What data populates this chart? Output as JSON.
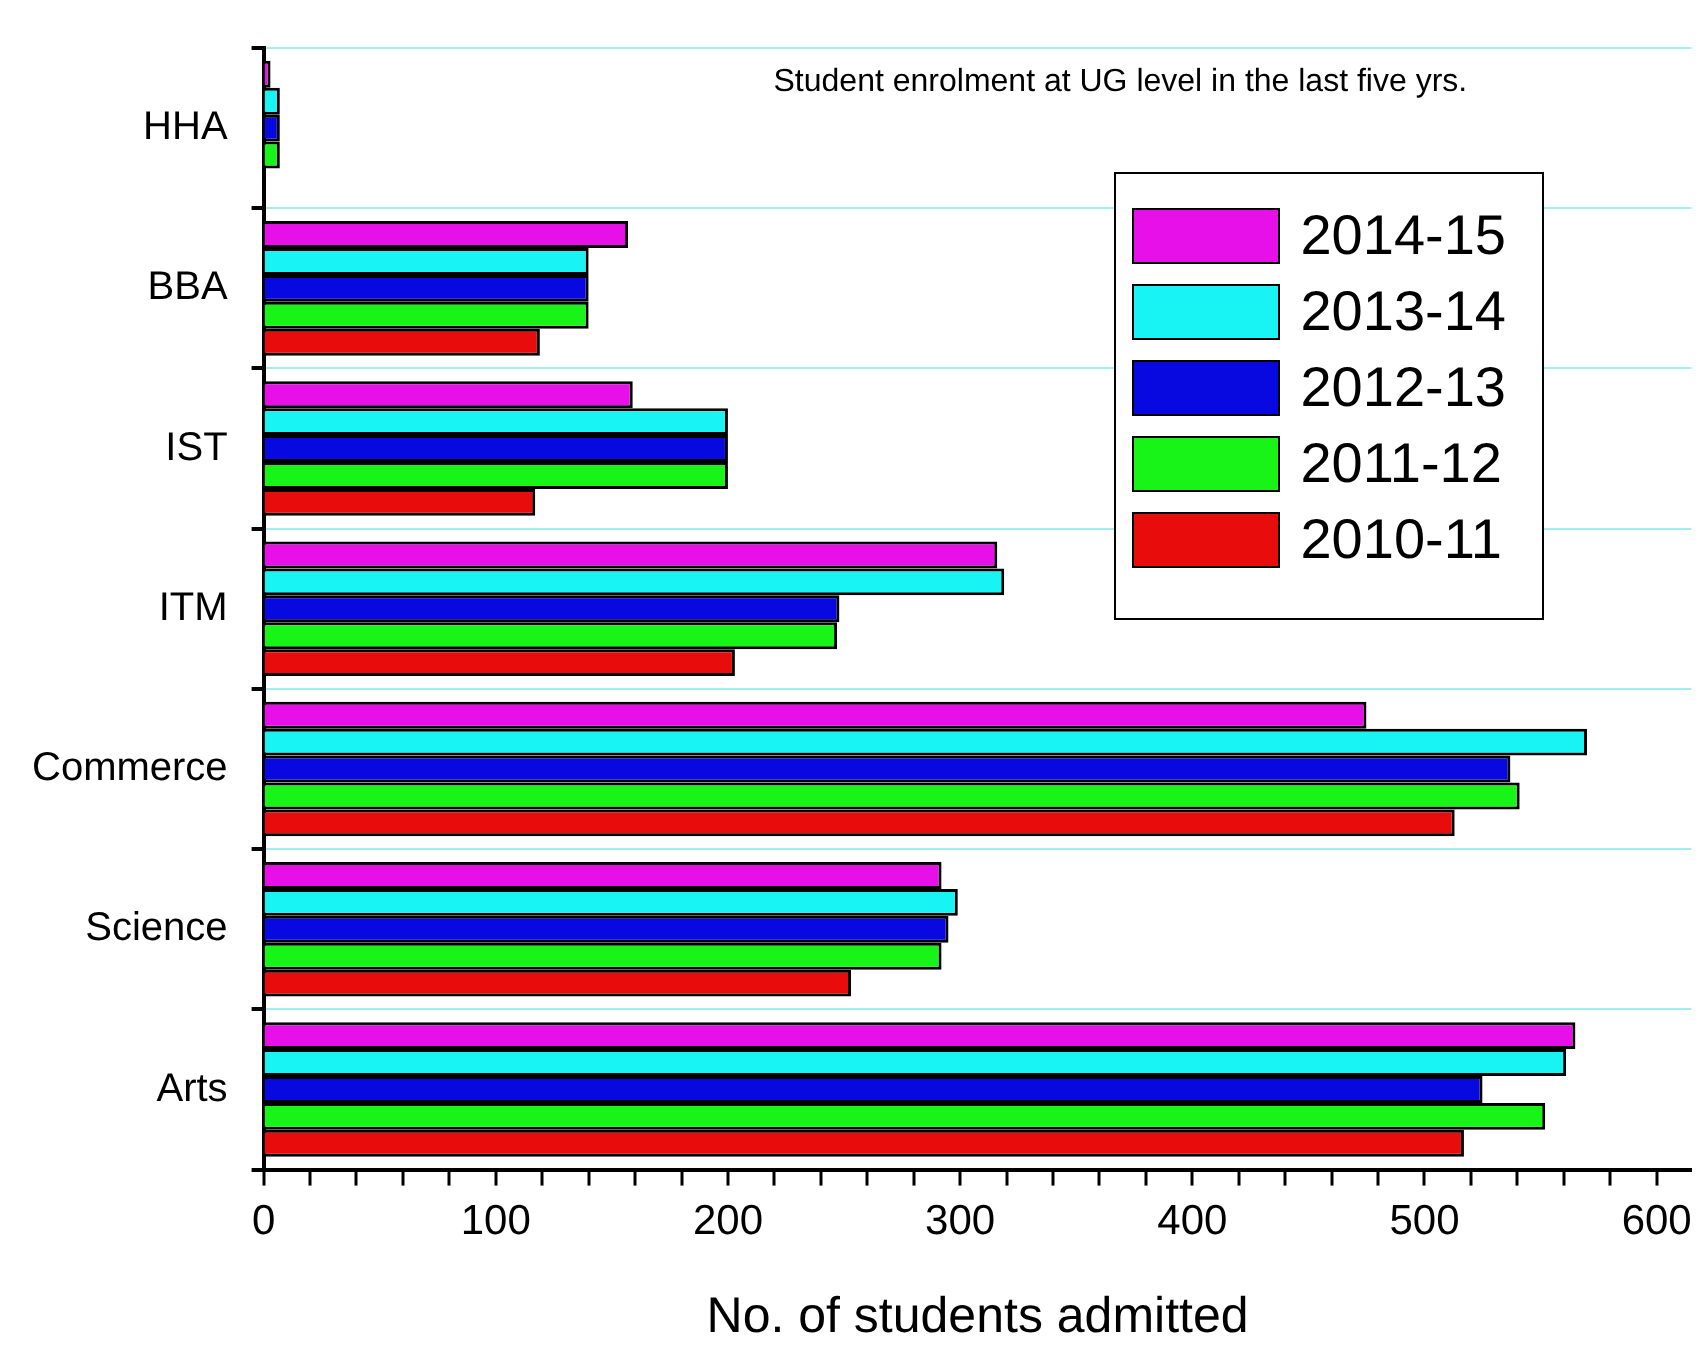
{
  "chart_data": {
    "type": "bar",
    "orientation": "horizontal",
    "title": "Student enrolment at UG level in the last five yrs.",
    "xlabel": "No. of students admitted",
    "categories": [
      "HHA",
      "BBA",
      "IST",
      "ITM",
      "Commerce",
      "Science",
      "Arts"
    ],
    "series": [
      {
        "name": "2014-15",
        "color": "#e810e8",
        "values": [
          3,
          157,
          159,
          316,
          475,
          292,
          565
        ]
      },
      {
        "name": "2013-14",
        "color": "#18f4f4",
        "values": [
          7,
          140,
          200,
          319,
          570,
          299,
          561
        ]
      },
      {
        "name": "2012-13",
        "color": "#0808e0",
        "values": [
          7,
          140,
          200,
          248,
          537,
          295,
          525
        ]
      },
      {
        "name": "2011-12",
        "color": "#18f418",
        "values": [
          7,
          140,
          200,
          247,
          541,
          292,
          552
        ]
      },
      {
        "name": "2010-11",
        "color": "#e80c0c",
        "values": [
          null,
          119,
          117,
          203,
          513,
          253,
          517
        ]
      }
    ],
    "xlim": [
      0,
      615
    ],
    "xticks": [
      0,
      {
        "value": 20,
        "label": null
      },
      {
        "value": 40,
        "label": null
      },
      {
        "value": 60,
        "label": null
      },
      {
        "value": 80,
        "label": null
      },
      100,
      {
        "value": 120,
        "label": null
      },
      {
        "value": 140,
        "label": null
      },
      {
        "value": 160,
        "label": null
      },
      {
        "value": 180,
        "label": null
      },
      200,
      {
        "value": 220,
        "label": null
      },
      {
        "value": 240,
        "label": null
      },
      {
        "value": 260,
        "label": null
      },
      {
        "value": 280,
        "label": null
      },
      300,
      {
        "value": 320,
        "label": null
      },
      {
        "value": 340,
        "label": null
      },
      {
        "value": 360,
        "label": null
      },
      {
        "value": 380,
        "label": null
      },
      400,
      {
        "value": 420,
        "label": null
      },
      {
        "value": 440,
        "label": null
      },
      {
        "value": 460,
        "label": null
      },
      {
        "value": 480,
        "label": null
      },
      500,
      {
        "value": 520,
        "label": null
      },
      {
        "value": 540,
        "label": null
      },
      {
        "value": 560,
        "label": null
      },
      {
        "value": 580,
        "label": null
      },
      600
    ],
    "grid": "y",
    "legend": "top right"
  }
}
